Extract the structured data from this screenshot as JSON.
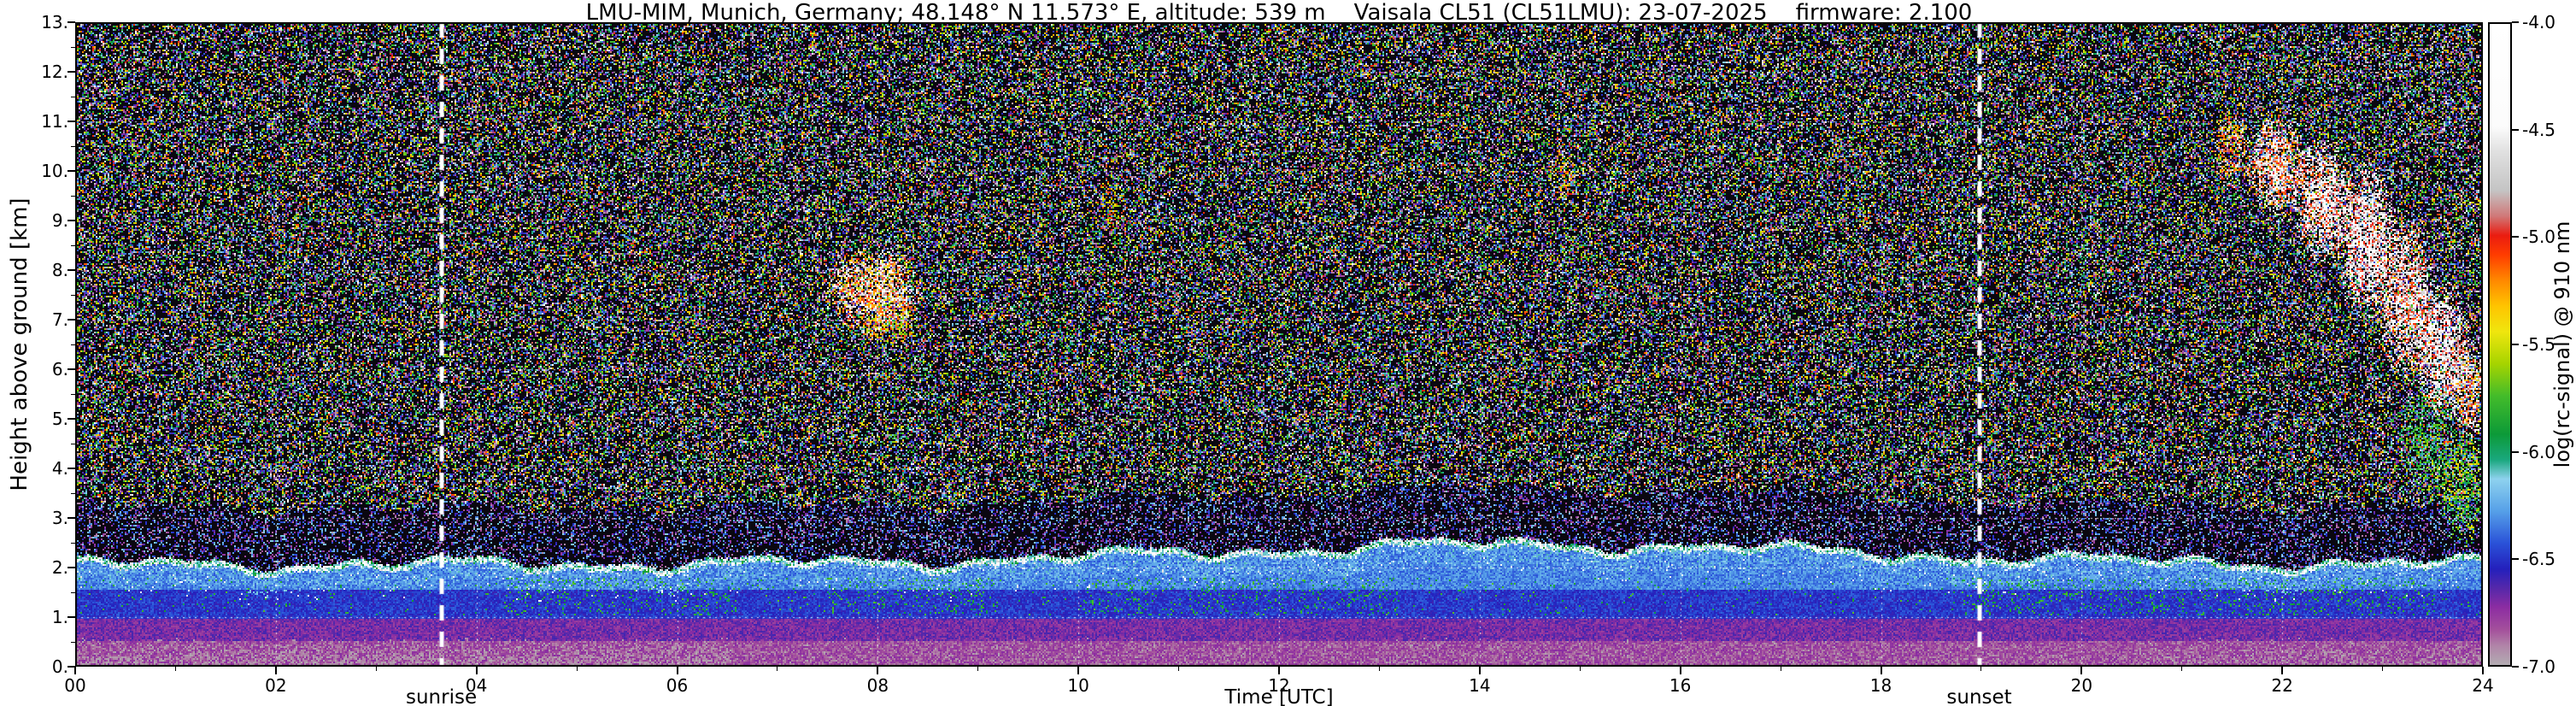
{
  "chart_data": {
    "type": "heatmap",
    "title": "LMU-MIM, Munich, Germany; 48.148° N 11.573° E, altitude: 539 m    Vaisala CL51 (CL51LMU): 23-07-2025    firmware: 2.100",
    "xlabel": "Time [UTC]",
    "ylabel": "Height above ground [km]",
    "x_range_hours": [
      0,
      24
    ],
    "y_range_km": [
      0,
      13
    ],
    "grid": {
      "x_step_hours": 2,
      "y_step_km": 1,
      "style": "white-dotted"
    },
    "x_ticks": [
      {
        "t": 0,
        "label": "00"
      },
      {
        "t": 2,
        "label": "02"
      },
      {
        "t": 4,
        "label": "04"
      },
      {
        "t": 6,
        "label": "06"
      },
      {
        "t": 8,
        "label": "08"
      },
      {
        "t": 10,
        "label": "10"
      },
      {
        "t": 12,
        "label": "12"
      },
      {
        "t": 14,
        "label": "14"
      },
      {
        "t": 16,
        "label": "16"
      },
      {
        "t": 18,
        "label": "18"
      },
      {
        "t": 20,
        "label": "20"
      },
      {
        "t": 22,
        "label": "22"
      },
      {
        "t": 24,
        "label": "24"
      }
    ],
    "y_ticks": [
      {
        "km": 0,
        "label": "0."
      },
      {
        "km": 1,
        "label": "1."
      },
      {
        "km": 2,
        "label": "2."
      },
      {
        "km": 3,
        "label": "3."
      },
      {
        "km": 4,
        "label": "4."
      },
      {
        "km": 5,
        "label": "5."
      },
      {
        "km": 6,
        "label": "6."
      },
      {
        "km": 7,
        "label": "7."
      },
      {
        "km": 8,
        "label": "8."
      },
      {
        "km": 9,
        "label": "9."
      },
      {
        "km": 10,
        "label": "10."
      },
      {
        "km": 11,
        "label": "11."
      },
      {
        "km": 12,
        "label": "12."
      },
      {
        "km": 13,
        "label": "13."
      }
    ],
    "sun": {
      "sunrise_utc": 3.65,
      "sunset_utc": 18.98,
      "sunrise_label": "sunrise",
      "sunset_label": "sunset",
      "line_style": "thick-white-dashed"
    },
    "colorbar": {
      "label": "log(rc-signal) @ 910 nm",
      "range": [
        -4.0,
        -7.0
      ],
      "ticks": [
        {
          "v": -4.0,
          "label": "-4.0"
        },
        {
          "v": -4.5,
          "label": "-4.5"
        },
        {
          "v": -5.0,
          "label": "-5.0"
        },
        {
          "v": -5.5,
          "label": "-5.5"
        },
        {
          "v": -6.0,
          "label": "-6.0"
        },
        {
          "v": -6.5,
          "label": "-6.5"
        },
        {
          "v": -7.0,
          "label": "-7.0"
        }
      ],
      "stops": [
        {
          "f": 0.0,
          "c": "#ffffff"
        },
        {
          "f": 0.16,
          "c": "#fcfcfc"
        },
        {
          "f": 0.2,
          "c": "#e0e0e0"
        },
        {
          "f": 0.26,
          "c": "#c4c4c4"
        },
        {
          "f": 0.3,
          "c": "#d07878"
        },
        {
          "f": 0.33,
          "c": "#ea1c10"
        },
        {
          "f": 0.36,
          "c": "#ff3c00"
        },
        {
          "f": 0.4,
          "c": "#ff8800"
        },
        {
          "f": 0.44,
          "c": "#ffc400"
        },
        {
          "f": 0.48,
          "c": "#f0e60e"
        },
        {
          "f": 0.53,
          "c": "#a6d400"
        },
        {
          "f": 0.58,
          "c": "#44bc2a"
        },
        {
          "f": 0.64,
          "c": "#0c9a38"
        },
        {
          "f": 0.68,
          "c": "#1aa87e"
        },
        {
          "f": 0.71,
          "c": "#8ed2ee"
        },
        {
          "f": 0.76,
          "c": "#56a0e8"
        },
        {
          "f": 0.81,
          "c": "#2a52d8"
        },
        {
          "f": 0.85,
          "c": "#2420bc"
        },
        {
          "f": 0.88,
          "c": "#5528aa"
        },
        {
          "f": 0.91,
          "c": "#8c2da2"
        },
        {
          "f": 0.945,
          "c": "#a4509c"
        },
        {
          "f": 0.97,
          "c": "#b184a8"
        },
        {
          "f": 1.0,
          "c": "#b2acb2"
        }
      ]
    },
    "background": {
      "dark": "#0a0710",
      "speckle_prob": 0.45
    },
    "boundary_layer": {
      "top_km_base": 2.1,
      "day_bump_km": 0.4,
      "day_center_utc": 14.5,
      "day_width_h": 4.5,
      "top_line_white_prob": 0.55,
      "green_windows_utc": [
        [
          4.3,
          6.6
        ],
        [
          7.5,
          9.2
        ],
        [
          10.0,
          13.2
        ],
        [
          18.8,
          23.6
        ]
      ],
      "layers": [
        {
          "max_km": 0.5,
          "v": -6.82
        },
        {
          "max_km": 0.95,
          "v": -6.7
        },
        {
          "max_km": 1.55,
          "v": -6.5
        },
        {
          "max_km": 99,
          "v": -6.33
        }
      ]
    },
    "clouds": [
      {
        "t": 7.95,
        "y": 7.6,
        "rt": 0.5,
        "ry": 0.85,
        "dens": 0.75,
        "v0": -4.8,
        "spread": 1.3
      },
      {
        "t": 8.1,
        "y": 7.0,
        "rt": 0.3,
        "ry": 0.6,
        "dens": 0.5,
        "v0": -5.2,
        "spread": 1.0
      },
      {
        "t": 10.35,
        "y": 9.3,
        "rt": 0.12,
        "ry": 0.5,
        "dens": 0.25,
        "v0": -5.3,
        "spread": 0.8
      },
      {
        "t": 14.85,
        "y": 9.9,
        "rt": 0.15,
        "ry": 0.6,
        "dens": 0.3,
        "v0": -5.1,
        "spread": 0.9
      },
      {
        "t": 21.5,
        "y": 10.4,
        "rt": 0.2,
        "ry": 0.8,
        "dens": 0.55,
        "v0": -5.0,
        "spread": 1.0
      },
      {
        "t": 21.95,
        "y": 10.1,
        "rt": 0.3,
        "ry": 1.0,
        "dens": 0.8,
        "v0": -4.7,
        "spread": 1.2
      },
      {
        "t": 22.4,
        "y": 9.4,
        "rt": 0.3,
        "ry": 1.3,
        "dens": 0.85,
        "v0": -4.6,
        "spread": 1.2
      },
      {
        "t": 22.85,
        "y": 8.6,
        "rt": 0.3,
        "ry": 1.6,
        "dens": 0.85,
        "v0": -4.5,
        "spread": 1.2
      },
      {
        "t": 23.25,
        "y": 7.4,
        "rt": 0.3,
        "ry": 1.6,
        "dens": 0.8,
        "v0": -4.6,
        "spread": 1.2
      },
      {
        "t": 23.6,
        "y": 6.4,
        "rt": 0.28,
        "ry": 1.4,
        "dens": 0.8,
        "v0": -4.5,
        "spread": 1.2
      },
      {
        "t": 23.85,
        "y": 5.6,
        "rt": 0.2,
        "ry": 1.0,
        "dens": 0.7,
        "v0": -4.8,
        "spread": 1.2
      },
      {
        "t": 23.45,
        "y": 4.6,
        "rt": 0.3,
        "ry": 1.1,
        "dens": 0.45,
        "v0": -5.9,
        "spread": 0.7
      },
      {
        "t": 23.8,
        "y": 3.6,
        "rt": 0.25,
        "ry": 1.2,
        "dens": 0.5,
        "v0": -5.8,
        "spread": 0.8
      }
    ]
  }
}
